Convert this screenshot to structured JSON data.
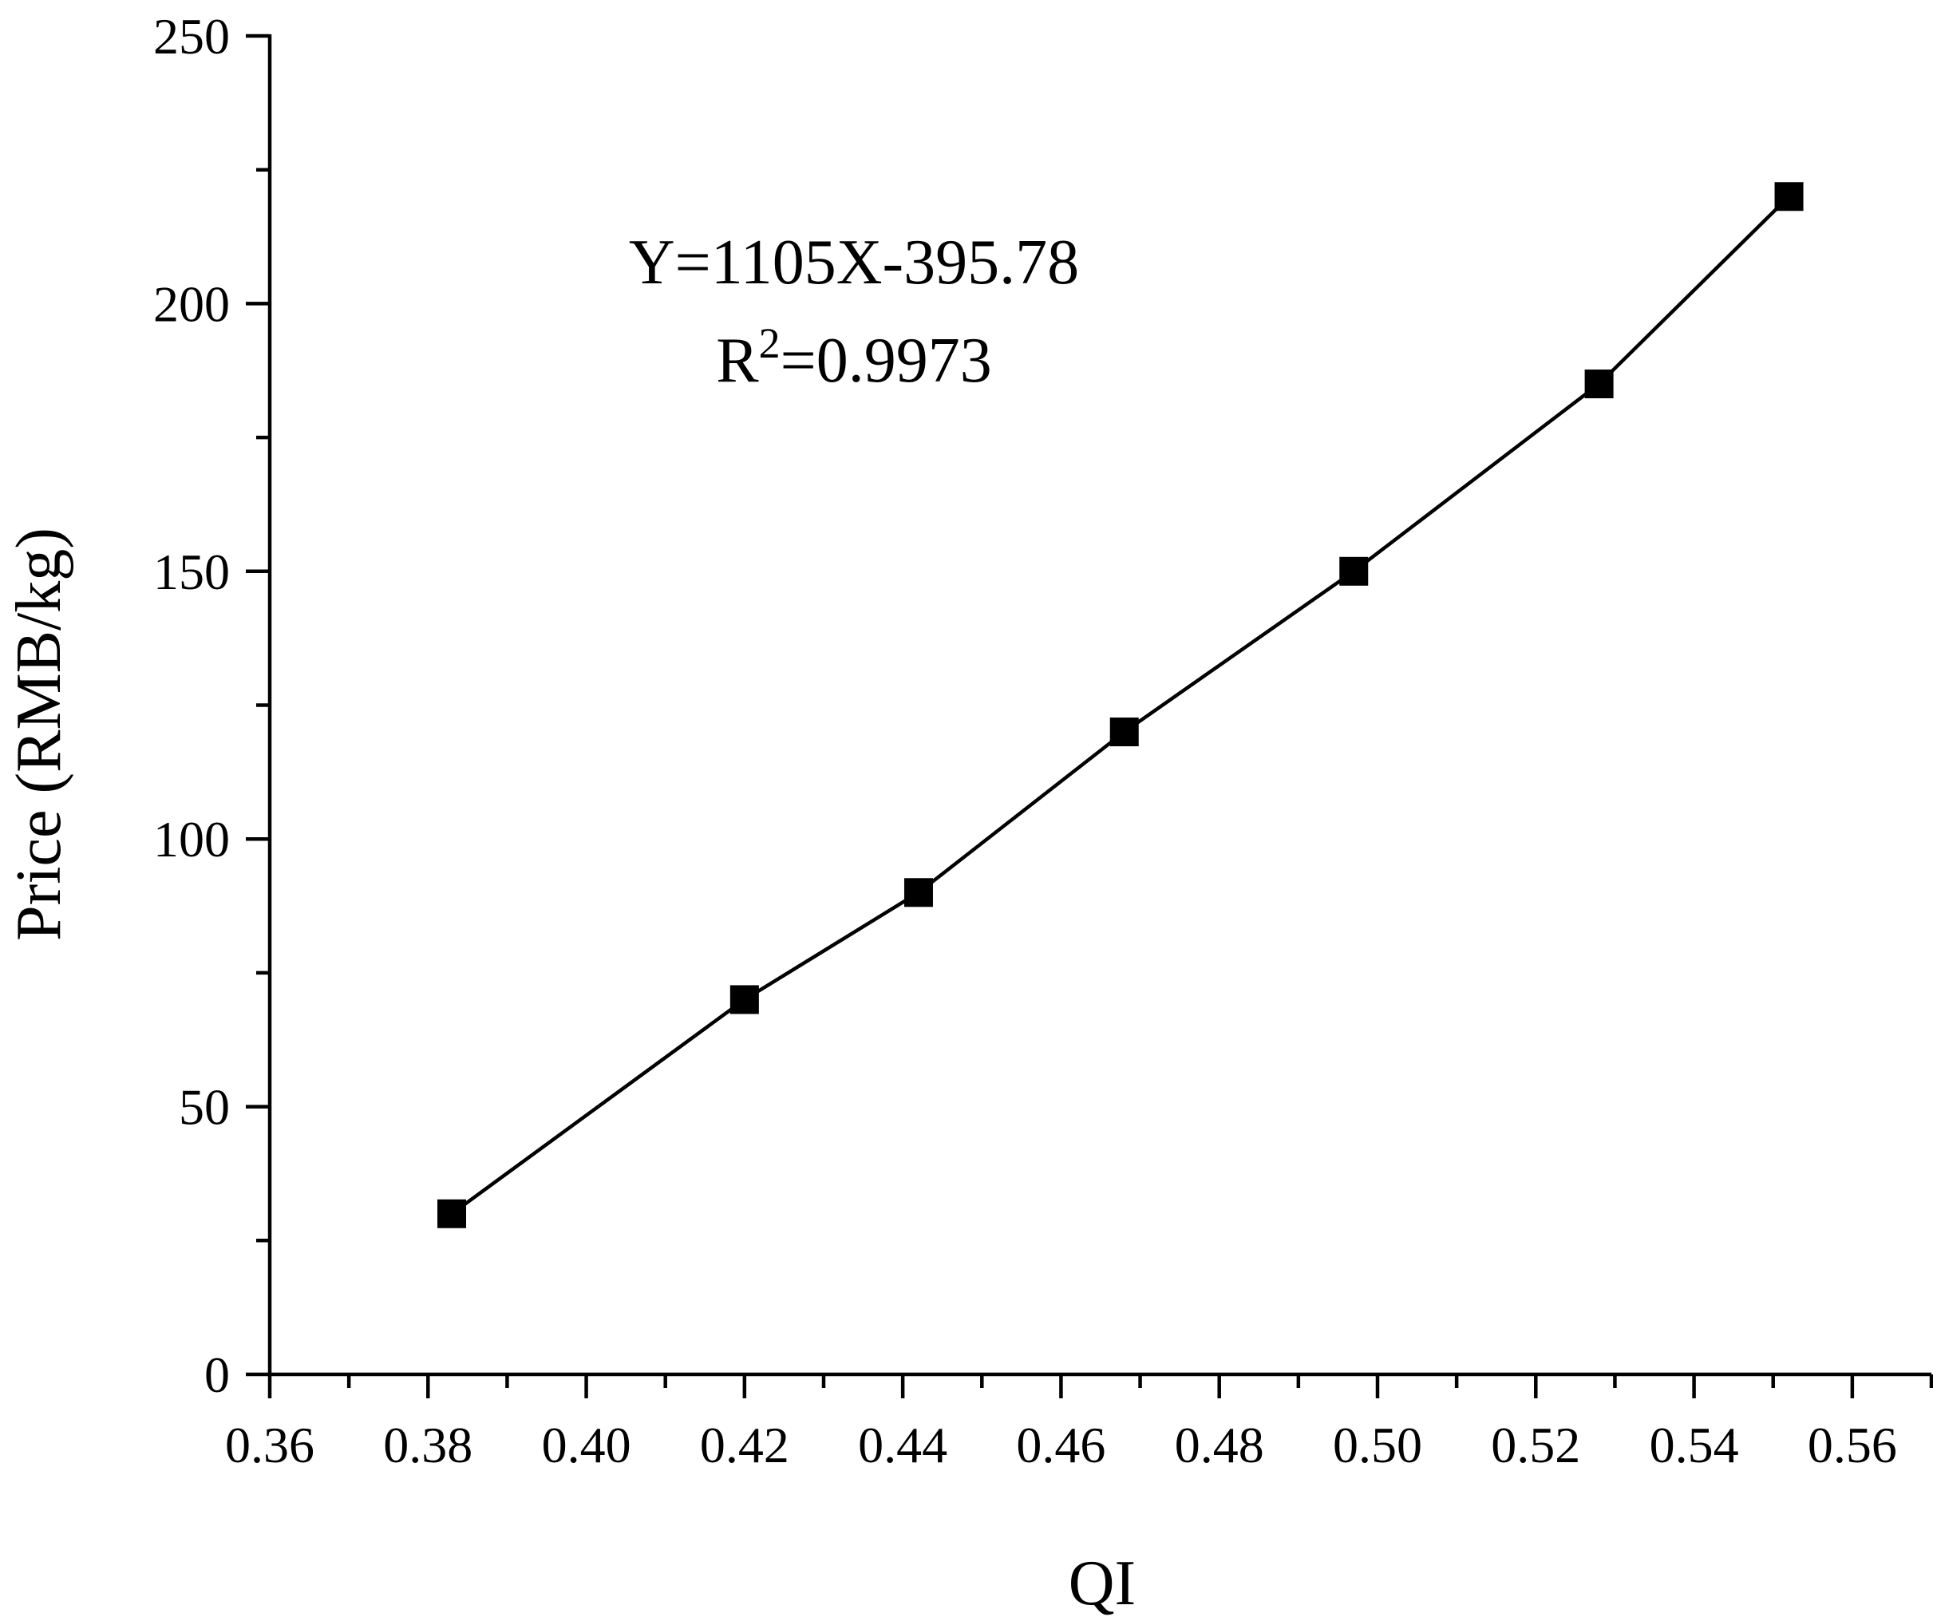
{
  "chart_data": {
    "type": "line",
    "title": "",
    "xlabel": "QI",
    "ylabel": "Price (RMB/kg)",
    "xlim": [
      0.36,
      0.57
    ],
    "ylim": [
      0,
      250
    ],
    "x_ticks": [
      0.36,
      0.38,
      0.4,
      0.42,
      0.44,
      0.46,
      0.48,
      0.5,
      0.52,
      0.54,
      0.56
    ],
    "x_tick_labels": [
      "0.36",
      "0.38",
      "0.40",
      "0.42",
      "0.44",
      "0.46",
      "0.48",
      "0.50",
      "0.52",
      "0.54",
      "0.56"
    ],
    "y_ticks": [
      0,
      50,
      100,
      150,
      200,
      250
    ],
    "y_tick_labels": [
      "0",
      "50",
      "100",
      "150",
      "200",
      "250"
    ],
    "grid": false,
    "marker": "square",
    "series": [
      {
        "x": [
          0.383,
          0.42,
          0.442,
          0.468,
          0.497,
          0.528,
          0.552
        ],
        "y": [
          30,
          70,
          90,
          120,
          150,
          185,
          220
        ]
      }
    ],
    "annotations": {
      "equation": "Y=1105X-395.78",
      "r2_prefix": "R",
      "r2_superscript": "2",
      "r2_value": "=0.9973"
    },
    "colors": {
      "line": "#000000",
      "marker": "#000000"
    }
  }
}
